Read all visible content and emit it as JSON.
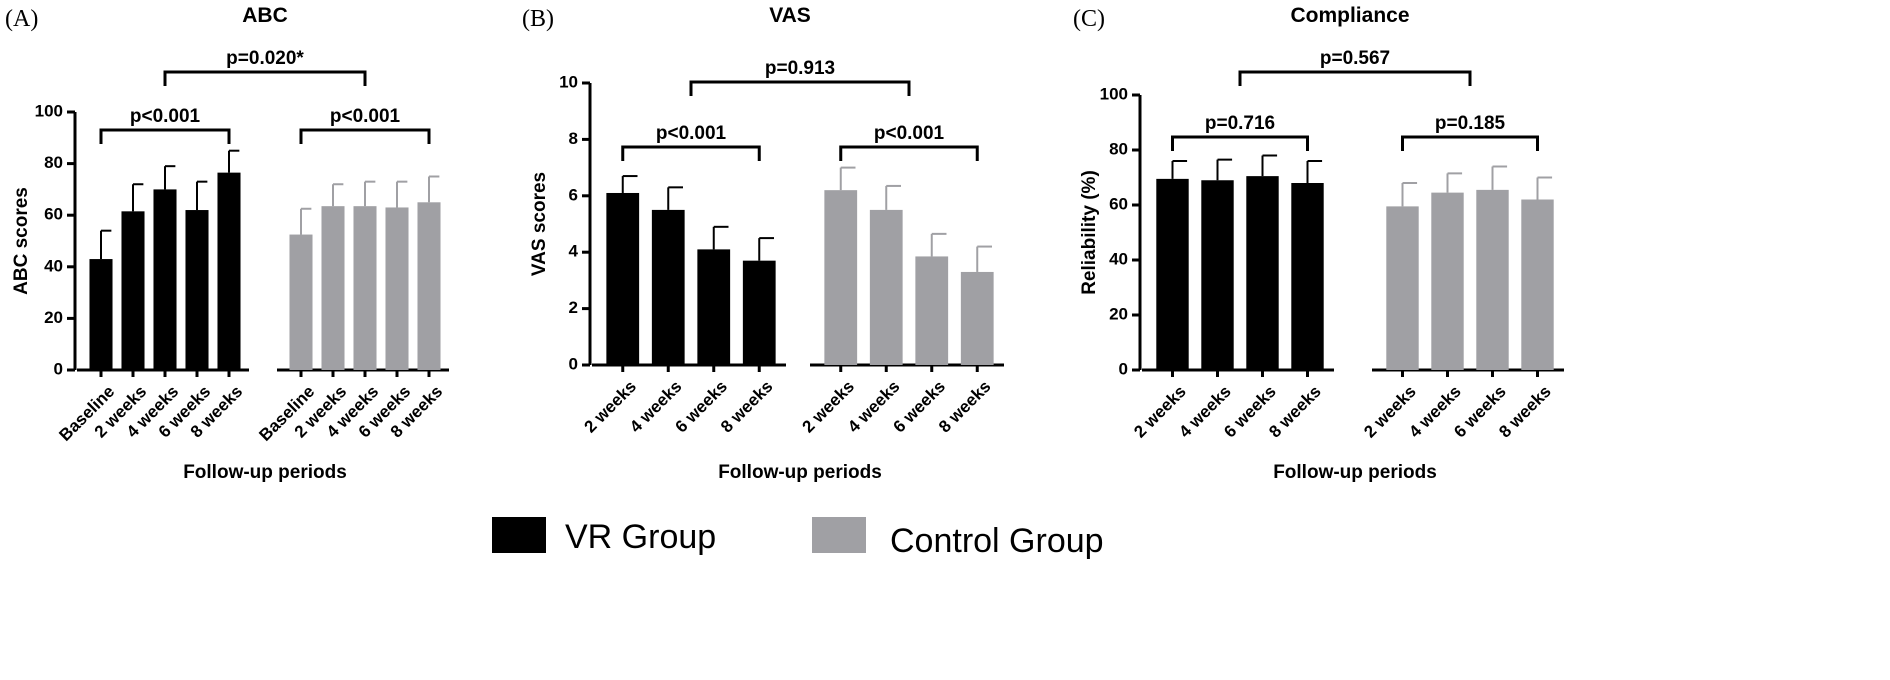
{
  "legend": {
    "series": [
      {
        "name": "VR Group",
        "color": "#000000"
      },
      {
        "name": "Control Group",
        "color": "#a0a0a4"
      }
    ]
  },
  "chart_data": [
    {
      "type": "bar",
      "panel": "(A)",
      "title": "ABC",
      "ylabel": "ABC scores",
      "xlabel": "Follow-up periods",
      "categories": [
        "Baseline",
        "2 weeks",
        "4 weeks",
        "6 weeks",
        "8 weeks"
      ],
      "series": [
        {
          "values": [
            43,
            61.5,
            70,
            62,
            76.5
          ],
          "errors": [
            11,
            10.5,
            9,
            11,
            8.5
          ]
        },
        {
          "values": [
            52.5,
            63.5,
            63.5,
            63,
            65
          ],
          "errors": [
            10,
            8.5,
            9.5,
            10,
            10
          ]
        }
      ],
      "annotations": [
        "p<0.001",
        "p<0.001",
        "p=0.020*"
      ],
      "ylim": [
        0,
        100
      ],
      "yticks": [
        0,
        20,
        40,
        60,
        80,
        100
      ]
    },
    {
      "type": "bar",
      "panel": "(B)",
      "title": "VAS",
      "ylabel": "VAS scores",
      "xlabel": "Follow-up periods",
      "categories": [
        "2 weeks",
        "4 weeks",
        "6 weeks",
        "8 weeks"
      ],
      "series": [
        {
          "values": [
            6.1,
            5.5,
            4.1,
            3.7
          ],
          "errors": [
            0.6,
            0.8,
            0.8,
            0.8
          ]
        },
        {
          "values": [
            6.2,
            5.5,
            3.85,
            3.3
          ],
          "errors": [
            0.8,
            0.85,
            0.8,
            0.9
          ]
        }
      ],
      "annotations": [
        "p<0.001",
        "p<0.001",
        "p=0.913"
      ],
      "ylim": [
        0,
        10
      ],
      "yticks": [
        0,
        2,
        4,
        6,
        8,
        10
      ]
    },
    {
      "type": "bar",
      "panel": "(C)",
      "title": "Compliance",
      "ylabel": "Reliability (%)",
      "xlabel": "Follow-up periods",
      "categories": [
        "2 weeks",
        "4 weeks",
        "6 weeks",
        "8 weeks"
      ],
      "series": [
        {
          "values": [
            69.5,
            69,
            70.5,
            68
          ],
          "errors": [
            6.5,
            7.5,
            7.5,
            8
          ]
        },
        {
          "values": [
            59.5,
            64.5,
            65.5,
            62
          ],
          "errors": [
            8.5,
            7,
            8.5,
            8
          ]
        }
      ],
      "annotations": [
        "p=0.716",
        "p=0.185",
        "p=0.567"
      ],
      "ylim": [
        0,
        100
      ],
      "yticks": [
        0,
        20,
        40,
        60,
        80,
        100
      ]
    }
  ]
}
